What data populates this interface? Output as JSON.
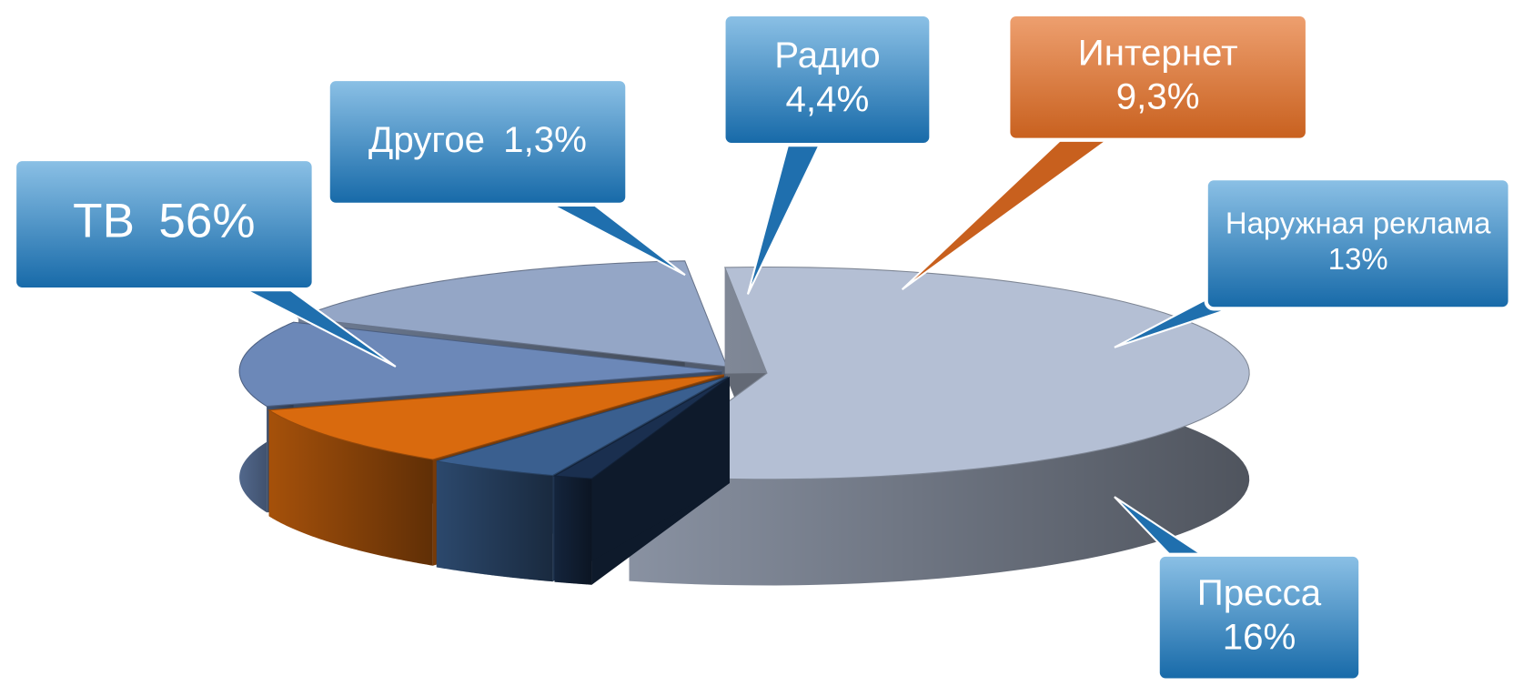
{
  "chart_data": {
    "type": "pie",
    "categories": [
      "ТВ",
      "Другое",
      "Радио",
      "Интернет",
      "Наружная реклама",
      "Пресса"
    ],
    "values": [
      56,
      1.3,
      4.4,
      9.3,
      13,
      16
    ],
    "value_labels": [
      "56%",
      "1,3%",
      "4,4%",
      "9,3%",
      "13%",
      "16%"
    ],
    "colors": [
      "#b4bfd4",
      "#1a2f4f",
      "#3a5f8f",
      "#d96a0e",
      "#6c88b8",
      "#94a6c6"
    ],
    "callout_colors": [
      "#2f80c4",
      "#2f80c4",
      "#2f80c4",
      "#d2702c",
      "#2f80c4",
      "#2f80c4"
    ]
  }
}
